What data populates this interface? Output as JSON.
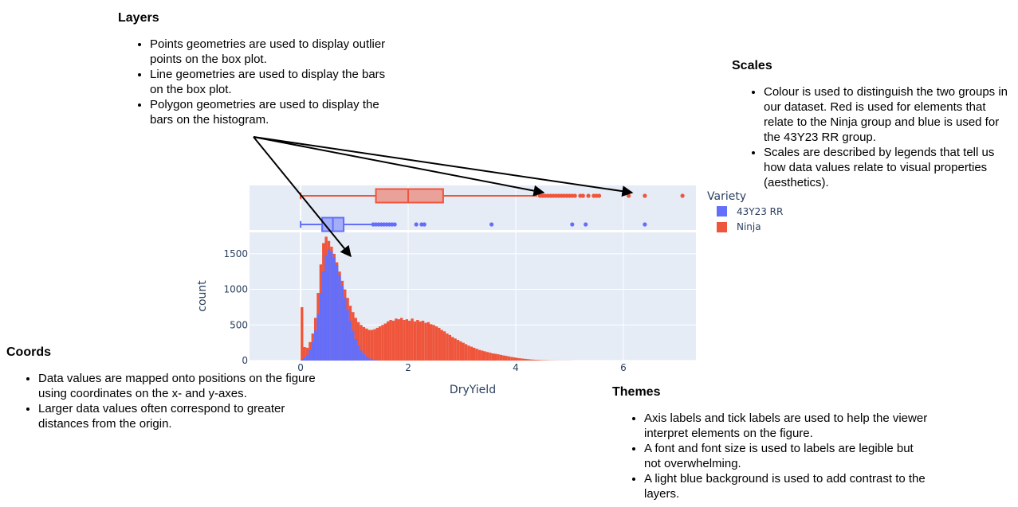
{
  "layers": {
    "title": "Layers",
    "items": [
      "Points geometries are used to display outlier points on the box plot.",
      "Line geometries are used to display the bars on the box plot.",
      "Polygon geometries are used to display the bars on the histogram."
    ]
  },
  "scales": {
    "title": "Scales",
    "items": [
      "Colour is used to distinguish the two groups in our dataset. Red is used for elements that relate to the Ninja group and blue is used for the 43Y23 RR group.",
      "Scales are described by legends that tell us how data values relate to visual properties (aesthetics)."
    ]
  },
  "coords": {
    "title": "Coords",
    "items": [
      "Data values are mapped onto positions on the figure using coordinates on the x- and y-axes.",
      "Larger data values often correspond to greater distances from the origin."
    ]
  },
  "themes": {
    "title": "Themes",
    "items": [
      "Axis labels and tick labels are used to help the viewer interpret elements on the figure.",
      "A font and font size is used to labels are legible but not overwhelming.",
      "A light blue background is used to add contrast to the layers."
    ]
  },
  "colors": {
    "ninja": "#ef553b",
    "rr": "#636efa",
    "plot_bg": "#e5ecf6",
    "axis_text": "#2a3f5f"
  },
  "chart_data": {
    "type": "histogram+box",
    "xlabel": "DryYield",
    "ylabel": "count",
    "x_ticks": [
      "0",
      "2",
      "4",
      "6"
    ],
    "y_ticks": [
      "0",
      "500",
      "1000",
      "1500"
    ],
    "xlim": [
      -0.95,
      7.35
    ],
    "ylim": [
      0,
      1800
    ],
    "legend": {
      "title": "Variety",
      "placement": "right",
      "entries": [
        "43Y23 RR",
        "Ninja"
      ]
    },
    "box": {
      "Ninja": {
        "whisker_low": 0.0,
        "q1": 1.4,
        "median": 2.0,
        "q3": 2.65,
        "whisker_high": 4.4,
        "outliers": [
          4.45,
          4.5,
          4.55,
          4.6,
          4.65,
          4.7,
          4.75,
          4.8,
          4.85,
          4.9,
          4.95,
          5.0,
          5.05,
          5.1,
          5.2,
          5.25,
          5.35,
          5.45,
          5.5,
          5.55,
          6.1,
          6.4,
          7.1
        ]
      },
      "43Y23 RR": {
        "whisker_low": 0.0,
        "q1": 0.4,
        "median": 0.6,
        "q3": 0.8,
        "whisker_high": 1.35,
        "outliers": [
          1.35,
          1.4,
          1.45,
          1.5,
          1.55,
          1.6,
          1.65,
          1.7,
          1.75,
          2.15,
          2.25,
          2.3,
          3.55,
          5.05,
          5.3,
          6.4
        ]
      }
    },
    "histogram": {
      "Ninja": [
        [
          0.0,
          750
        ],
        [
          0.05,
          190
        ],
        [
          0.1,
          180
        ],
        [
          0.15,
          260
        ],
        [
          0.2,
          380
        ],
        [
          0.25,
          600
        ],
        [
          0.3,
          950
        ],
        [
          0.35,
          1350
        ],
        [
          0.4,
          1650
        ],
        [
          0.45,
          1740
        ],
        [
          0.5,
          1680
        ],
        [
          0.55,
          1600
        ],
        [
          0.6,
          1500
        ],
        [
          0.65,
          1380
        ],
        [
          0.7,
          1250
        ],
        [
          0.75,
          1120
        ],
        [
          0.8,
          1000
        ],
        [
          0.85,
          880
        ],
        [
          0.9,
          770
        ],
        [
          0.95,
          680
        ],
        [
          1.0,
          600
        ],
        [
          1.05,
          540
        ],
        [
          1.1,
          500
        ],
        [
          1.15,
          470
        ],
        [
          1.2,
          450
        ],
        [
          1.25,
          430
        ],
        [
          1.3,
          430
        ],
        [
          1.35,
          440
        ],
        [
          1.4,
          460
        ],
        [
          1.45,
          480
        ],
        [
          1.5,
          500
        ],
        [
          1.55,
          520
        ],
        [
          1.6,
          550
        ],
        [
          1.65,
          570
        ],
        [
          1.7,
          560
        ],
        [
          1.75,
          590
        ],
        [
          1.8,
          580
        ],
        [
          1.85,
          600
        ],
        [
          1.9,
          570
        ],
        [
          1.95,
          580
        ],
        [
          2.0,
          560
        ],
        [
          2.05,
          590
        ],
        [
          2.1,
          550
        ],
        [
          2.15,
          570
        ],
        [
          2.2,
          550
        ],
        [
          2.25,
          560
        ],
        [
          2.3,
          530
        ],
        [
          2.35,
          540
        ],
        [
          2.4,
          510
        ],
        [
          2.45,
          500
        ],
        [
          2.5,
          480
        ],
        [
          2.55,
          460
        ],
        [
          2.6,
          430
        ],
        [
          2.65,
          410
        ],
        [
          2.7,
          380
        ],
        [
          2.75,
          360
        ],
        [
          2.8,
          330
        ],
        [
          2.85,
          310
        ],
        [
          2.9,
          290
        ],
        [
          2.95,
          270
        ],
        [
          3.0,
          250
        ],
        [
          3.05,
          230
        ],
        [
          3.1,
          210
        ],
        [
          3.15,
          195
        ],
        [
          3.2,
          180
        ],
        [
          3.25,
          165
        ],
        [
          3.3,
          150
        ],
        [
          3.35,
          140
        ],
        [
          3.4,
          130
        ],
        [
          3.45,
          120
        ],
        [
          3.5,
          110
        ],
        [
          3.55,
          100
        ],
        [
          3.6,
          95
        ],
        [
          3.65,
          88
        ],
        [
          3.7,
          80
        ],
        [
          3.75,
          72
        ],
        [
          3.8,
          65
        ],
        [
          3.85,
          58
        ],
        [
          3.9,
          50
        ],
        [
          3.95,
          44
        ],
        [
          4.0,
          38
        ],
        [
          4.05,
          33
        ],
        [
          4.1,
          28
        ],
        [
          4.15,
          24
        ],
        [
          4.2,
          20
        ],
        [
          4.25,
          16
        ],
        [
          4.3,
          13
        ],
        [
          4.35,
          10
        ],
        [
          4.4,
          8
        ],
        [
          4.45,
          6
        ],
        [
          4.5,
          5
        ],
        [
          4.55,
          4
        ],
        [
          4.6,
          3
        ],
        [
          4.65,
          2
        ],
        [
          4.7,
          2
        ],
        [
          4.75,
          1
        ],
        [
          4.8,
          1
        ],
        [
          4.85,
          1
        ],
        [
          4.9,
          1
        ],
        [
          4.95,
          1
        ],
        [
          5.0,
          1
        ]
      ],
      "43Y23 RR": [
        [
          0.0,
          20
        ],
        [
          0.05,
          40
        ],
        [
          0.1,
          80
        ],
        [
          0.15,
          150
        ],
        [
          0.2,
          260
        ],
        [
          0.25,
          420
        ],
        [
          0.3,
          650
        ],
        [
          0.35,
          950
        ],
        [
          0.4,
          1250
        ],
        [
          0.45,
          1480
        ],
        [
          0.5,
          1560
        ],
        [
          0.55,
          1530
        ],
        [
          0.6,
          1450
        ],
        [
          0.65,
          1340
        ],
        [
          0.7,
          1200
        ],
        [
          0.75,
          1050
        ],
        [
          0.8,
          880
        ],
        [
          0.85,
          710
        ],
        [
          0.9,
          560
        ],
        [
          0.95,
          420
        ],
        [
          1.0,
          300
        ],
        [
          1.05,
          210
        ],
        [
          1.1,
          140
        ],
        [
          1.15,
          90
        ],
        [
          1.2,
          55
        ],
        [
          1.25,
          30
        ],
        [
          1.3,
          15
        ],
        [
          1.35,
          8
        ],
        [
          1.4,
          4
        ],
        [
          1.45,
          2
        ],
        [
          1.5,
          1
        ]
      ]
    }
  }
}
